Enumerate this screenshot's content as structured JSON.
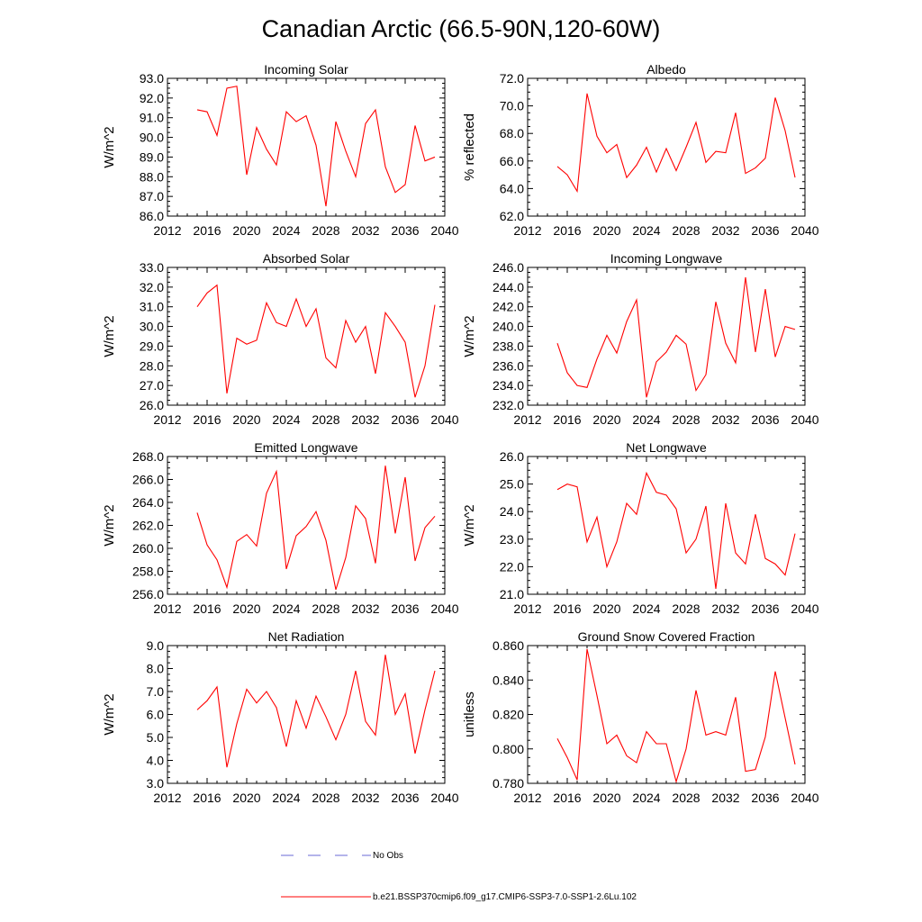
{
  "title": "Canadian Arctic (66.5-90N,120-60W)",
  "series_color": "#ff0000",
  "noobs_color": "#6a6ad6",
  "legend": {
    "noobs_label": "No Obs",
    "model_label": "b.e21.BSSP370cmip6.f09_g17.CMIP6-SSP3-7.0-SSP1-2.6Lu.102"
  },
  "chart_data": [
    {
      "type": "line",
      "title": "Incoming Solar",
      "ylabel": "W/m^2",
      "xlim": [
        2012,
        2040
      ],
      "x_ticks": [
        2012,
        2016,
        2020,
        2024,
        2028,
        2032,
        2036,
        2040
      ],
      "ylim": [
        86.0,
        93.0
      ],
      "y_ticks": [
        "86.0",
        "87.0",
        "88.0",
        "89.0",
        "90.0",
        "91.0",
        "92.0",
        "93.0"
      ],
      "x": [
        2015,
        2016,
        2017,
        2018,
        2019,
        2020,
        2021,
        2022,
        2023,
        2024,
        2025,
        2026,
        2027,
        2028,
        2029,
        2030,
        2031,
        2032,
        2033,
        2034,
        2035,
        2036,
        2037,
        2038,
        2039
      ],
      "values": [
        91.4,
        91.3,
        90.1,
        92.5,
        92.6,
        88.1,
        90.5,
        89.4,
        88.6,
        91.3,
        90.8,
        91.1,
        89.6,
        86.5,
        90.8,
        89.3,
        88.0,
        90.7,
        91.4,
        88.5,
        87.2,
        87.6,
        90.6,
        88.8,
        89.0
      ]
    },
    {
      "type": "line",
      "title": "Albedo",
      "ylabel": "% reflected",
      "xlim": [
        2012,
        2040
      ],
      "x_ticks": [
        2012,
        2016,
        2020,
        2024,
        2028,
        2032,
        2036,
        2040
      ],
      "ylim": [
        62.0,
        72.0
      ],
      "y_ticks": [
        "62.0",
        "64.0",
        "66.0",
        "68.0",
        "70.0",
        "72.0"
      ],
      "x": [
        2015,
        2016,
        2017,
        2018,
        2019,
        2020,
        2021,
        2022,
        2023,
        2024,
        2025,
        2026,
        2027,
        2028,
        2029,
        2030,
        2031,
        2032,
        2033,
        2034,
        2035,
        2036,
        2037,
        2038,
        2039
      ],
      "values": [
        65.6,
        65.0,
        63.8,
        70.9,
        67.8,
        66.6,
        67.2,
        64.8,
        65.7,
        67.0,
        65.2,
        66.9,
        65.3,
        67.0,
        68.8,
        65.9,
        66.7,
        66.6,
        69.5,
        65.1,
        65.5,
        66.2,
        70.6,
        68.2,
        64.8
      ]
    },
    {
      "type": "line",
      "title": "Absorbed Solar",
      "ylabel": "W/m^2",
      "xlim": [
        2012,
        2040
      ],
      "x_ticks": [
        2012,
        2016,
        2020,
        2024,
        2028,
        2032,
        2036,
        2040
      ],
      "ylim": [
        26.0,
        33.0
      ],
      "y_ticks": [
        "26.0",
        "27.0",
        "28.0",
        "29.0",
        "30.0",
        "31.0",
        "32.0",
        "33.0"
      ],
      "x": [
        2015,
        2016,
        2017,
        2018,
        2019,
        2020,
        2021,
        2022,
        2023,
        2024,
        2025,
        2026,
        2027,
        2028,
        2029,
        2030,
        2031,
        2032,
        2033,
        2034,
        2035,
        2036,
        2037,
        2038,
        2039
      ],
      "values": [
        31.0,
        31.7,
        32.1,
        26.6,
        29.4,
        29.1,
        29.3,
        31.2,
        30.2,
        30.0,
        31.4,
        30.0,
        30.9,
        28.4,
        27.9,
        30.3,
        29.2,
        30.0,
        27.6,
        30.7,
        30.0,
        29.2,
        26.4,
        28.0,
        31.1
      ]
    },
    {
      "type": "line",
      "title": "Incoming Longwave",
      "ylabel": "W/m^2",
      "xlim": [
        2012,
        2040
      ],
      "x_ticks": [
        2012,
        2016,
        2020,
        2024,
        2028,
        2032,
        2036,
        2040
      ],
      "ylim": [
        232.0,
        246.0
      ],
      "y_ticks": [
        "232.0",
        "234.0",
        "236.0",
        "238.0",
        "240.0",
        "242.0",
        "244.0",
        "246.0"
      ],
      "x": [
        2015,
        2016,
        2017,
        2018,
        2019,
        2020,
        2021,
        2022,
        2023,
        2024,
        2025,
        2026,
        2027,
        2028,
        2029,
        2030,
        2031,
        2032,
        2033,
        2034,
        2035,
        2036,
        2037,
        2038,
        2039
      ],
      "values": [
        238.3,
        235.3,
        234.0,
        233.8,
        236.7,
        239.1,
        237.3,
        240.5,
        242.7,
        232.8,
        236.4,
        237.4,
        239.1,
        238.2,
        233.5,
        235.1,
        242.5,
        238.3,
        236.3,
        245.0,
        237.4,
        243.8,
        236.9,
        240.0,
        239.7
      ]
    },
    {
      "type": "line",
      "title": "Emitted Longwave",
      "ylabel": "W/m^2",
      "xlim": [
        2012,
        2040
      ],
      "x_ticks": [
        2012,
        2016,
        2020,
        2024,
        2028,
        2032,
        2036,
        2040
      ],
      "ylim": [
        256.0,
        268.0
      ],
      "y_ticks": [
        "256.0",
        "258.0",
        "260.0",
        "262.0",
        "264.0",
        "266.0",
        "268.0"
      ],
      "x": [
        2015,
        2016,
        2017,
        2018,
        2019,
        2020,
        2021,
        2022,
        2023,
        2024,
        2025,
        2026,
        2027,
        2028,
        2029,
        2030,
        2031,
        2032,
        2033,
        2034,
        2035,
        2036,
        2037,
        2038,
        2039
      ],
      "values": [
        263.1,
        260.3,
        259.0,
        256.6,
        260.6,
        261.2,
        260.2,
        264.8,
        266.7,
        258.2,
        261.1,
        261.9,
        263.2,
        260.7,
        256.4,
        259.2,
        263.7,
        262.6,
        258.7,
        267.2,
        261.3,
        266.2,
        258.9,
        261.8,
        262.8
      ]
    },
    {
      "type": "line",
      "title": "Net Longwave",
      "ylabel": "W/m^2",
      "xlim": [
        2012,
        2040
      ],
      "x_ticks": [
        2012,
        2016,
        2020,
        2024,
        2028,
        2032,
        2036,
        2040
      ],
      "ylim": [
        21.0,
        26.0
      ],
      "y_ticks": [
        "21.0",
        "22.0",
        "23.0",
        "24.0",
        "25.0",
        "26.0"
      ],
      "x": [
        2015,
        2016,
        2017,
        2018,
        2019,
        2020,
        2021,
        2022,
        2023,
        2024,
        2025,
        2026,
        2027,
        2028,
        2029,
        2030,
        2031,
        2032,
        2033,
        2034,
        2035,
        2036,
        2037,
        2038,
        2039
      ],
      "values": [
        24.8,
        25.0,
        24.9,
        22.9,
        23.8,
        22.0,
        22.9,
        24.3,
        23.9,
        25.4,
        24.7,
        24.6,
        24.1,
        22.5,
        23.0,
        24.2,
        21.2,
        24.3,
        22.5,
        22.1,
        23.9,
        22.3,
        22.1,
        21.7,
        23.2
      ]
    },
    {
      "type": "line",
      "title": "Net Radiation",
      "ylabel": "W/m^2",
      "xlim": [
        2012,
        2040
      ],
      "x_ticks": [
        2012,
        2016,
        2020,
        2024,
        2028,
        2032,
        2036,
        2040
      ],
      "ylim": [
        3.0,
        9.0
      ],
      "y_ticks": [
        "3.0",
        "4.0",
        "5.0",
        "6.0",
        "7.0",
        "8.0",
        "9.0"
      ],
      "x": [
        2015,
        2016,
        2017,
        2018,
        2019,
        2020,
        2021,
        2022,
        2023,
        2024,
        2025,
        2026,
        2027,
        2028,
        2029,
        2030,
        2031,
        2032,
        2033,
        2034,
        2035,
        2036,
        2037,
        2038,
        2039
      ],
      "values": [
        6.2,
        6.6,
        7.2,
        3.7,
        5.6,
        7.1,
        6.5,
        7.0,
        6.3,
        4.6,
        6.6,
        5.4,
        6.8,
        5.9,
        4.9,
        6.0,
        7.9,
        5.7,
        5.1,
        8.6,
        6.0,
        6.9,
        4.3,
        6.2,
        7.9
      ]
    },
    {
      "type": "line",
      "title": "Ground Snow Covered Fraction",
      "ylabel": "unitless",
      "xlim": [
        2012,
        2040
      ],
      "x_ticks": [
        2012,
        2016,
        2020,
        2024,
        2028,
        2032,
        2036,
        2040
      ],
      "ylim": [
        0.78,
        0.86
      ],
      "y_ticks": [
        "0.780",
        "0.800",
        "0.820",
        "0.840",
        "0.860"
      ],
      "x": [
        2015,
        2016,
        2017,
        2018,
        2019,
        2020,
        2021,
        2022,
        2023,
        2024,
        2025,
        2026,
        2027,
        2028,
        2029,
        2030,
        2031,
        2032,
        2033,
        2034,
        2035,
        2036,
        2037,
        2038,
        2039
      ],
      "values": [
        0.806,
        0.795,
        0.782,
        0.858,
        0.831,
        0.803,
        0.808,
        0.796,
        0.792,
        0.81,
        0.803,
        0.803,
        0.781,
        0.8,
        0.834,
        0.808,
        0.81,
        0.808,
        0.83,
        0.787,
        0.788,
        0.807,
        0.845,
        0.818,
        0.791
      ]
    }
  ]
}
